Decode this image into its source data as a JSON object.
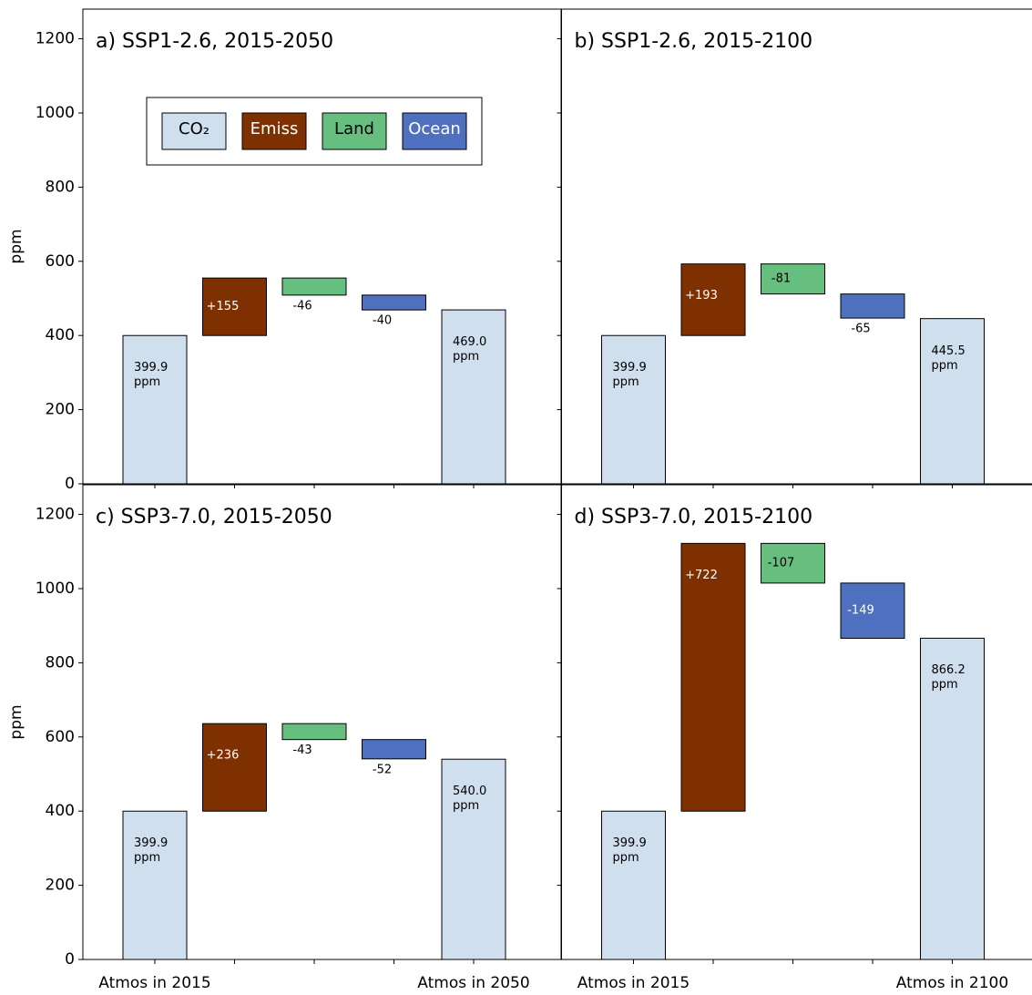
{
  "chart_data": [
    {
      "type": "waterfall",
      "title": "a) SSP1-2.6, 2015-2050",
      "ylabel": "ppm",
      "ytick_labels": true,
      "categories": [
        null,
        null,
        null,
        null,
        null
      ],
      "values": [
        399.9,
        155,
        -46,
        -40,
        469.0
      ],
      "value_labels": [
        "399.9 ppm",
        "+155",
        "-46",
        "-40",
        "469.0 ppm"
      ],
      "colors": [
        "#cfdfee",
        "#7f3000",
        "#66bf7f",
        "#4f6fbf",
        "#cfdfee"
      ],
      "ylim": [
        0,
        1280
      ],
      "yticks": [
        0,
        200,
        400,
        600,
        800,
        1000,
        1200
      ],
      "legend": [
        {
          "name": "CO₂",
          "color": "#cfdfee"
        },
        {
          "name": "Emiss",
          "color": "#7f3000"
        },
        {
          "name": "Land",
          "color": "#66bf7f"
        },
        {
          "name": "Ocean",
          "color": "#4f6fbf"
        }
      ]
    },
    {
      "type": "waterfall",
      "title": "b) SSP1-2.6, 2015-2100",
      "ytick_labels": false,
      "categories": [
        null,
        null,
        null,
        null,
        null
      ],
      "values": [
        399.9,
        193,
        -81,
        -65,
        445.5
      ],
      "value_labels": [
        "399.9 ppm",
        "+193",
        "-81",
        "-65",
        "445.5 ppm"
      ],
      "colors": [
        "#cfdfee",
        "#7f3000",
        "#66bf7f",
        "#4f6fbf",
        "#cfdfee"
      ],
      "ylim": [
        0,
        1280
      ],
      "yticks": [
        0,
        200,
        400,
        600,
        800,
        1000,
        1200
      ]
    },
    {
      "type": "waterfall",
      "title": "c) SSP3-7.0, 2015-2050",
      "ylabel": "ppm",
      "ytick_labels": true,
      "categories": [
        "Atmos in 2015",
        null,
        null,
        null,
        "Atmos in 2050"
      ],
      "values": [
        399.9,
        236,
        -43,
        -52,
        540.0
      ],
      "value_labels": [
        "399.9 ppm",
        "+236",
        "-43",
        "-52",
        "540.0 ppm"
      ],
      "colors": [
        "#cfdfee",
        "#7f3000",
        "#66bf7f",
        "#4f6fbf",
        "#cfdfee"
      ],
      "ylim": [
        0,
        1280
      ],
      "yticks": [
        0,
        200,
        400,
        600,
        800,
        1000,
        1200
      ]
    },
    {
      "type": "waterfall",
      "title": "d) SSP3-7.0, 2015-2100",
      "ytick_labels": false,
      "categories": [
        "Atmos in 2015",
        null,
        null,
        null,
        "Atmos in 2100"
      ],
      "values": [
        399.9,
        722,
        -107,
        -149,
        866.2
      ],
      "value_labels": [
        "399.9 ppm",
        "+722",
        "-107",
        "-149",
        "866.2 ppm"
      ],
      "colors": [
        "#cfdfee",
        "#7f3000",
        "#66bf7f",
        "#4f6fbf",
        "#cfdfee"
      ],
      "ylim": [
        0,
        1280
      ],
      "yticks": [
        0,
        200,
        400,
        600,
        800,
        1000,
        1200
      ]
    }
  ]
}
